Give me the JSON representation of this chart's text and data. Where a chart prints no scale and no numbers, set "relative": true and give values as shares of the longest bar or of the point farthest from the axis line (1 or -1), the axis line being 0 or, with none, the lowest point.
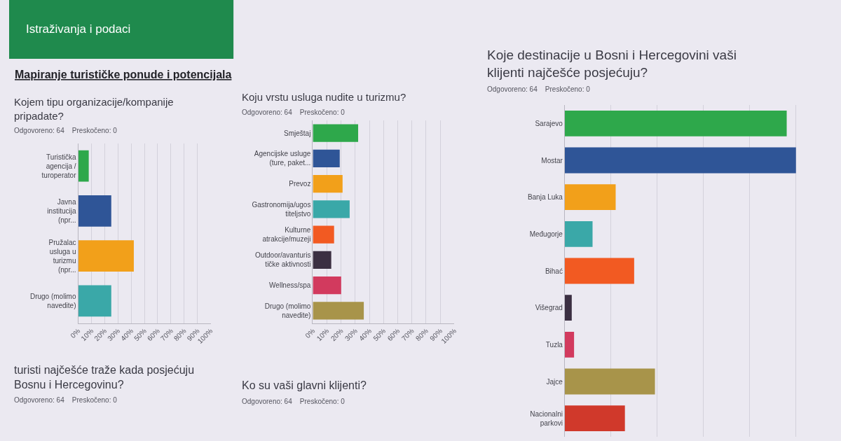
{
  "chart_data": [
    {
      "type": "other",
      "title": "Istraživanja i podaci",
      "subtitle": "Mapiranje turističke ponude i potencijala"
    },
    {
      "type": "bar",
      "orientation": "horizontal",
      "title": "Kojem tipu organizacije/kompanije pripadate?",
      "subtitle": "Odgovoreno: 64    Preskočeno: 0",
      "categories": [
        "Turistička agencija / turoperator",
        "Javna institucija (npr...",
        "Pružalac usluga u turizmu (npr...",
        "Drugo (molimo navedite)"
      ],
      "values": [
        8,
        25,
        42,
        25
      ],
      "colors": [
        "#2ea84b",
        "#2f5597",
        "#f2a01a",
        "#3aa8a8"
      ],
      "xlim": [
        0,
        100
      ],
      "xticks": [
        {
          "value": 0,
          "label": "0%"
        },
        {
          "value": 10,
          "label": "10%"
        },
        {
          "value": 20,
          "label": "20%"
        },
        {
          "value": 30,
          "label": "30%"
        },
        {
          "value": 40,
          "label": "40%"
        },
        {
          "value": 50,
          "label": "50%"
        },
        {
          "value": 60,
          "label": "60%"
        },
        {
          "value": 70,
          "label": "70%"
        },
        {
          "value": 80,
          "label": "80%"
        },
        {
          "value": 90,
          "label": "90%"
        },
        {
          "value": 100,
          "label": "100%"
        }
      ],
      "grid": "x"
    },
    {
      "type": "bar",
      "orientation": "horizontal",
      "title": "Koju vrstu usluga nudite u turizmu?",
      "subtitle": "Odgovoreno: 64    Preskočeno: 0",
      "categories": [
        "Smještaj",
        "Agencijske usluge (ture, paket...",
        "Prevoz",
        "Gastronomija/ugostiteljstvo",
        "Kulturne atrakcije/muzeji",
        "Outdoor/avanturističke aktivnosti",
        "Wellness/spa",
        "Drugo (molimo navedite)"
      ],
      "values": [
        32,
        19,
        21,
        26,
        15,
        13,
        20,
        36
      ],
      "colors": [
        "#2ea84b",
        "#2f5597",
        "#f2a01a",
        "#3aa8a8",
        "#f25a22",
        "#3b2f42",
        "#d23a5e",
        "#a8944a"
      ],
      "xlim": [
        0,
        100
      ],
      "xticks": [
        {
          "value": 0,
          "label": "0%"
        },
        {
          "value": 10,
          "label": "10%"
        },
        {
          "value": 20,
          "label": "20%"
        },
        {
          "value": 30,
          "label": "30%"
        },
        {
          "value": 40,
          "label": "40%"
        },
        {
          "value": 50,
          "label": "50%"
        },
        {
          "value": 60,
          "label": "60%"
        },
        {
          "value": 70,
          "label": "70%"
        },
        {
          "value": 80,
          "label": "80%"
        },
        {
          "value": 90,
          "label": "90%"
        },
        {
          "value": 100,
          "label": "100%"
        }
      ],
      "grid": "x"
    },
    {
      "type": "bar",
      "orientation": "horizontal",
      "relative": true,
      "title": "Koje destinacije u Bosni i Hercegovini vaši klijenti najčešće posjećuju?",
      "subtitle": "Odgovoreno: 64    Preskočeno: 0",
      "categories": [
        "Sarajevo",
        "Mostar",
        "Banja Luka",
        "Međugorje",
        "Bihać",
        "Višegrad",
        "Tuzla",
        "Jajce",
        "Nacionalni parkovi"
      ],
      "values": [
        0.96,
        1,
        0.22,
        0.12,
        0.3,
        0.03,
        0.04,
        0.39,
        0.26
      ],
      "colors": [
        "#2ea84b",
        "#2f5597",
        "#f2a01a",
        "#3aa8a8",
        "#f25a22",
        "#3b2f42",
        "#d23a5e",
        "#a8944a",
        "#d0392b"
      ],
      "grid": "x"
    },
    {
      "type": "other",
      "title": "turisti najčešće traže kada posjećuju Bosnu i Hercegovinu?",
      "subtitle": "Odgovoreno: 64    Preskočeno: 0"
    },
    {
      "type": "other",
      "title": "Ko su vaši glavni klijenti?",
      "subtitle": "Odgovoreno: 64    Preskočeno: 0"
    }
  ]
}
